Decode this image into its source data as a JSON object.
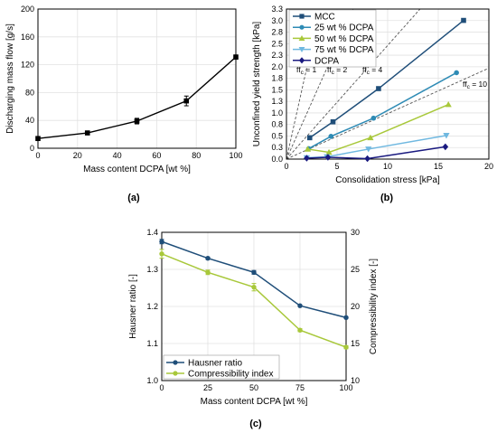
{
  "chart_data": [
    {
      "type": "line",
      "panel_label": "(a)",
      "xlabel": "Mass content DCPA [wt %]",
      "ylabel": "Discharging mass flow [g/s]",
      "xlim": [
        0,
        100
      ],
      "ylim": [
        0,
        200
      ],
      "xticks": [
        "0",
        "20",
        "40",
        "60",
        "80",
        "100"
      ],
      "yticks": [
        "0",
        "40",
        "80",
        "120",
        "160",
        "200"
      ],
      "grid": true,
      "color": "#000000",
      "series": [
        {
          "x": [
            0,
            25,
            50,
            75,
            100
          ],
          "y": [
            14,
            22,
            39,
            68,
            131
          ],
          "yerr": [
            2,
            2,
            4,
            7,
            3
          ]
        }
      ]
    },
    {
      "type": "line",
      "panel_label": "(b)",
      "xlabel": "Consolidation stress [kPa]",
      "ylabel": "Unconfined yield strength [kPa]",
      "xlim": [
        0,
        20
      ],
      "ylim": [
        0,
        3.3
      ],
      "xticks": [
        "0",
        "5",
        "10",
        "15",
        "20"
      ],
      "yticks": [
        "0.0",
        "0.3",
        "0.5",
        "0.8",
        "1.0",
        "1.3",
        "1.5",
        "1.8",
        "2.0",
        "2.3",
        "2.5",
        "2.8",
        "3.0",
        "3.3"
      ],
      "grid": true,
      "legend_position": "top-left",
      "ffc_lines": [
        {
          "ffc": 1,
          "label": "ff",
          "sub": "c",
          "rest": " = 1"
        },
        {
          "ffc": 2,
          "label": "ff",
          "sub": "c",
          "rest": " = 2"
        },
        {
          "ffc": 4,
          "label": "ff",
          "sub": "c",
          "rest": " = 4"
        },
        {
          "ffc": 10,
          "label": "ff",
          "sub": "c",
          "rest": " = 10"
        }
      ],
      "series": [
        {
          "name": "MCC",
          "color": "#1f4e79",
          "marker": "square",
          "x": [
            2.3,
            4.6,
            9.1,
            17.5
          ],
          "y": [
            0.47,
            0.82,
            1.55,
            3.05
          ]
        },
        {
          "name": "25 wt % DCPA",
          "color": "#2e8bb5",
          "marker": "circle",
          "x": [
            2.2,
            4.4,
            8.6,
            16.8
          ],
          "y": [
            0.23,
            0.5,
            0.9,
            1.9
          ]
        },
        {
          "name": "50 wt % DCPA",
          "color": "#a8c83a",
          "marker": "triangle-up",
          "x": [
            2.1,
            4.2,
            8.3,
            16.0
          ],
          "y": [
            0.22,
            0.15,
            0.47,
            1.2
          ]
        },
        {
          "name": "75 wt % DCPA",
          "color": "#6fb8e0",
          "marker": "triangle-down",
          "x": [
            2.0,
            4.0,
            8.1,
            15.8
          ],
          "y": [
            0.03,
            0.05,
            0.22,
            0.52
          ]
        },
        {
          "name": "DCPA",
          "color": "#1a1a80",
          "marker": "diamond",
          "x": [
            2.0,
            4.1,
            8.0,
            15.7
          ],
          "y": [
            0.02,
            0.04,
            0.01,
            0.27
          ]
        }
      ]
    },
    {
      "type": "line",
      "panel_label": "(c)",
      "xlabel": "Mass content DCPA [wt %]",
      "ylabel": "Hausner ratio [-]",
      "y2label": "Compressibility index [-]",
      "xlim": [
        0,
        100
      ],
      "ylim": [
        1.0,
        1.4
      ],
      "y2lim": [
        10,
        30
      ],
      "xticks": [
        "0",
        "25",
        "50",
        "75",
        "100"
      ],
      "yticks": [
        "1.0",
        "1.1",
        "1.2",
        "1.3",
        "1.4"
      ],
      "y2ticks": [
        "10",
        "15",
        "20",
        "25",
        "30"
      ],
      "grid": true,
      "legend_position": "bottom-left",
      "series": [
        {
          "name": "Hausner ratio",
          "color": "#1f4e79",
          "axis": "left",
          "x": [
            0,
            25,
            50,
            75,
            100
          ],
          "y": [
            1.375,
            1.33,
            1.292,
            1.202,
            1.17
          ],
          "yerr": [
            0.006,
            0.003,
            0.005,
            0.002,
            0.002
          ]
        },
        {
          "name": "Compressibility index",
          "color": "#a8c83a",
          "axis": "right",
          "x": [
            0,
            25,
            50,
            75,
            100
          ],
          "y": [
            27.1,
            24.6,
            22.6,
            16.8,
            14.5
          ],
          "yerr": [
            0.6,
            0.3,
            0.5,
            0.2,
            0.2
          ]
        }
      ]
    }
  ]
}
